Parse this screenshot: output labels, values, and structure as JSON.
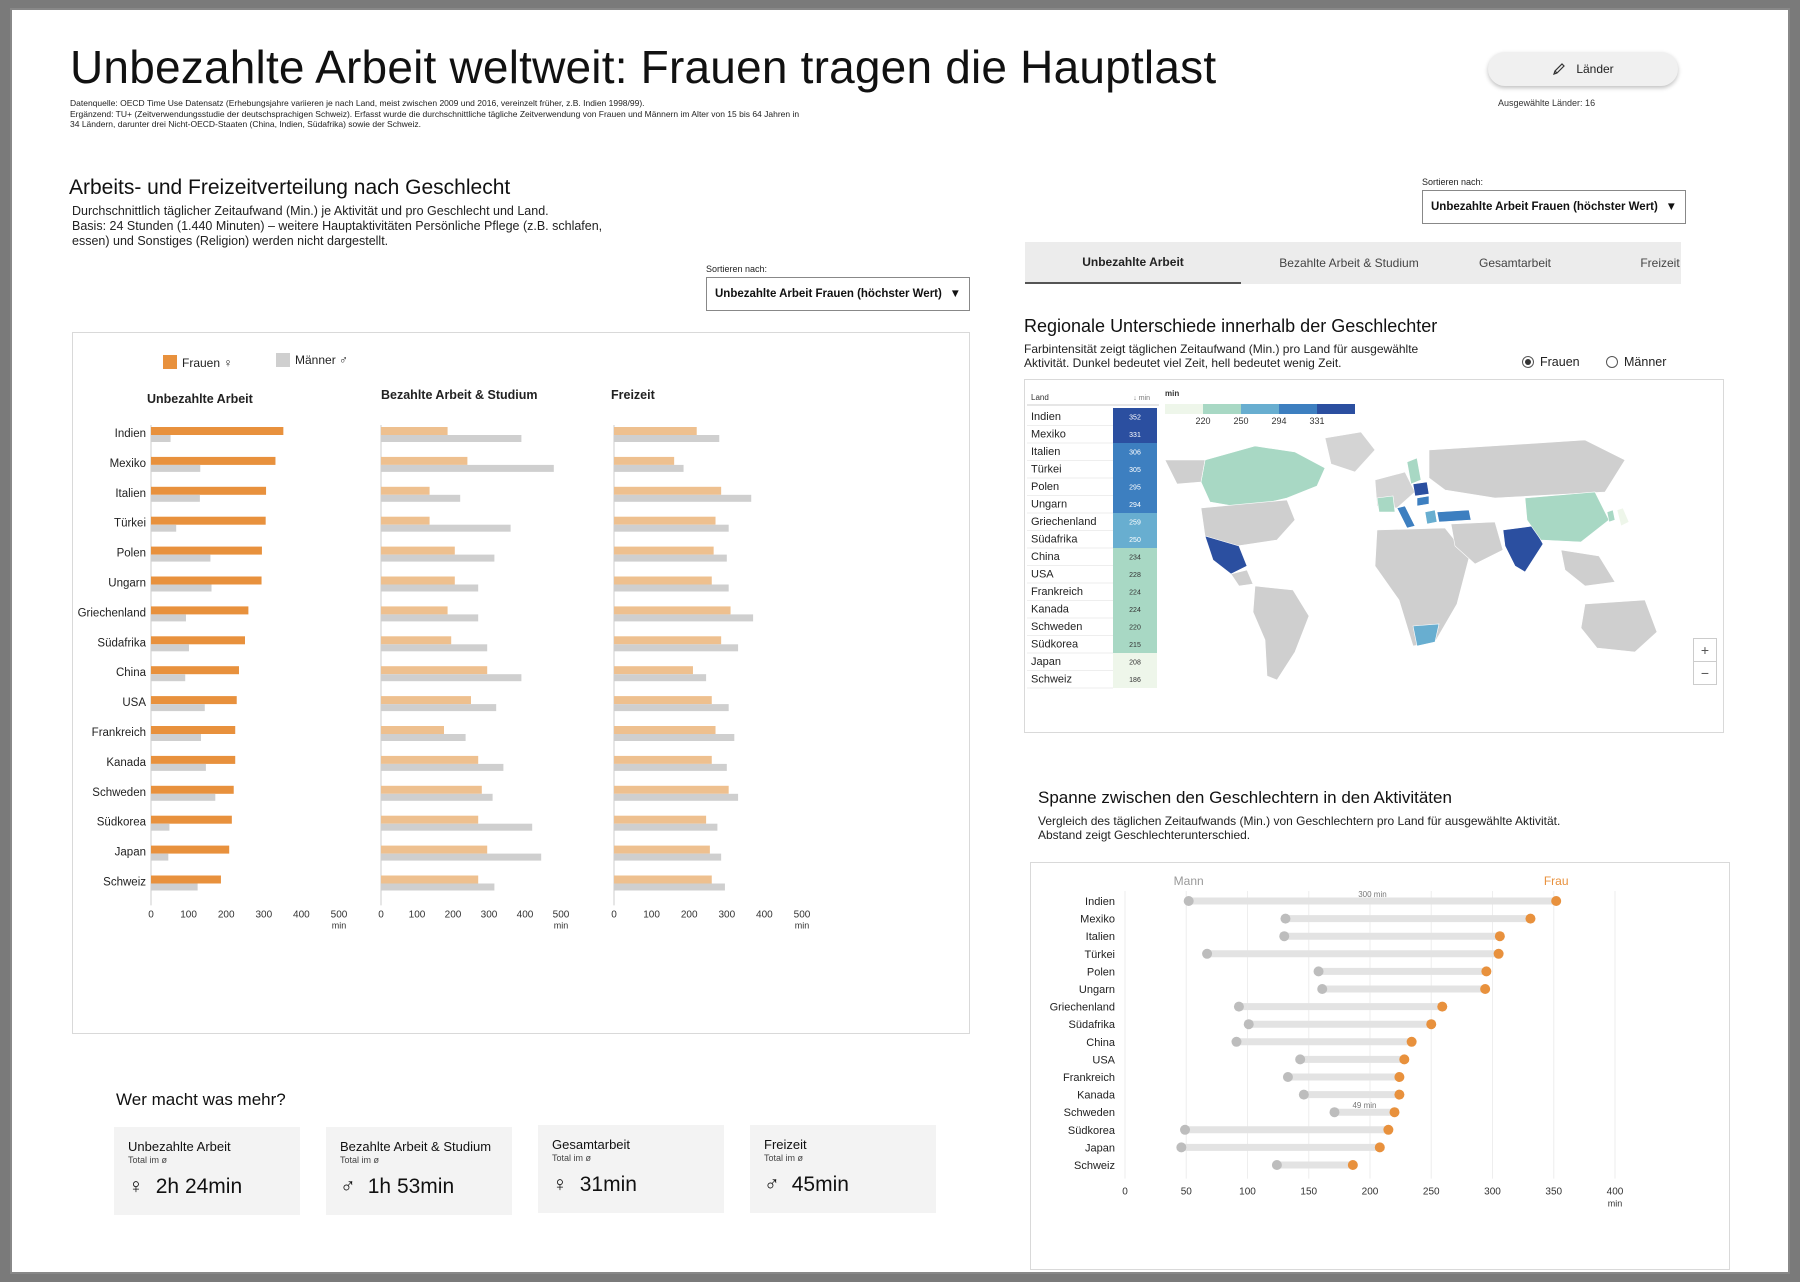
{
  "header": {
    "title": "Unbezahlte Arbeit weltweit: Frauen tragen die Hauptlast",
    "source_line1": "Datenquelle: OECD Time Use Datensatz (Erhebungsjahre variieren je nach Land, meist zwischen 2009 und 2016, vereinzelt früher, z.B. Indien 1998/99).",
    "source_line2": "Ergänzend: TU+ (Zeitverwendungsstudie der deutschsprachigen Schweiz). Erfasst wurde die durchschnittliche tägliche Zeitverwendung von Frauen und Männern im Alter von 15 bis 64 Jahren in 34 Ländern, darunter drei Nicht-OECD-Staaten (China, Indien, Südafrika) sowie der Schweiz.",
    "laender_button": "Länder",
    "laender_count": "Ausgewählte Länder: 16"
  },
  "left": {
    "title": "Arbeits- und Freizeitverteilung nach Geschlecht",
    "desc1": "Durchschnittlich täglicher Zeitaufwand (Min.) je Aktivität und pro Geschlecht und Land.",
    "desc2": "Basis: 24 Stunden (1.440 Minuten) – weitere Hauptaktivitäten Persönliche Pflege (z.B. schlafen, essen) und Sonstiges (Religion) werden nicht dargestellt.",
    "sort_label": "Sortieren nach:",
    "sort_value": "Unbezahlte Arbeit Frauen (höchster Wert)"
  },
  "right": {
    "sort_label": "Sortieren nach:",
    "sort_value": "Unbezahlte Arbeit Frauen (höchster Wert)",
    "tabs": [
      "Unbezahlte Arbeit",
      "Bezahlte Arbeit & Studium",
      "Gesamtarbeit",
      "Freizeit"
    ],
    "map_title": "Regionale Unterschiede innerhalb der Geschlechter",
    "map_desc1": "Farbintensität zeigt täglichen Zeitaufwand (Min.) pro Land für ausgewählte",
    "map_desc2": "Aktivität. Dunkel bedeutet viel Zeit, hell bedeutet wenig Zeit.",
    "radio_frauen": "Frauen",
    "radio_maenner": "Männer",
    "table_head_land": "Land",
    "table_head_min": "↓ min",
    "legend_label": "min",
    "legend_ticks": [
      "220",
      "250",
      "294",
      "331"
    ],
    "zoom_in": "+",
    "zoom_out": "−",
    "span_title": "Spanne zwischen den Geschlechtern in den Aktivitäten",
    "span_desc1": "Vergleich des täglichen Zeitaufwands (Min.) von Geschlechtern pro Land für ausgewählte Aktivität.",
    "span_desc2": "Abstand zeigt Geschlechterunterschied."
  },
  "summary": {
    "title": "Wer macht was mehr?",
    "cards": [
      {
        "title": "Unbezahlte Arbeit",
        "sub": "Total im ø",
        "symbol": "♀",
        "value": "2h 24min"
      },
      {
        "title": "Bezahlte Arbeit & Studium",
        "sub": "Total im ø",
        "symbol": "♂",
        "value": "1h 53min"
      },
      {
        "title": "Gesamtarbeit",
        "sub": "Total im ø",
        "symbol": "♀",
        "value": "31min"
      },
      {
        "title": "Freizeit",
        "sub": "Total im ø",
        "symbol": "♂",
        "value": "45min"
      }
    ]
  },
  "colors": {
    "frauen": "#e8913d",
    "frauen_light": "#eec08f",
    "maenner": "#cfcfcf",
    "dumbbell_mann": "#bdbdbd",
    "heat": [
      "#eef6ea",
      "#a8d8c4",
      "#68aed0",
      "#3d7fc0",
      "#2b4fa0"
    ]
  },
  "chart_data": [
    {
      "type": "bar",
      "title": "Unbezahlte Arbeit",
      "legend": [
        "Frauen ♀",
        "Männer ♂"
      ],
      "unit": "min",
      "categories": [
        "Indien",
        "Mexiko",
        "Italien",
        "Türkei",
        "Polen",
        "Ungarn",
        "Griechenland",
        "Südafrika",
        "China",
        "USA",
        "Frankreich",
        "Kanada",
        "Schweden",
        "Südkorea",
        "Japan",
        "Schweiz"
      ],
      "xticks": [
        "0",
        "100",
        "200",
        "300",
        "400",
        "500"
      ],
      "xlim": [
        0,
        500
      ],
      "series": [
        {
          "name": "Frauen",
          "values": [
            352,
            331,
            306,
            305,
            295,
            294,
            259,
            250,
            234,
            228,
            224,
            224,
            220,
            215,
            208,
            186
          ]
        },
        {
          "name": "Männer",
          "values": [
            52,
            131,
            130,
            67,
            158,
            161,
            93,
            101,
            91,
            143,
            133,
            146,
            171,
            49,
            46,
            124
          ]
        }
      ]
    },
    {
      "type": "bar",
      "title": "Bezahlte Arbeit & Studium",
      "unit": "min",
      "categories": [
        "Indien",
        "Mexiko",
        "Italien",
        "Türkei",
        "Polen",
        "Ungarn",
        "Griechenland",
        "Südafrika",
        "China",
        "USA",
        "Frankreich",
        "Kanada",
        "Schweden",
        "Südkorea",
        "Japan",
        "Schweiz"
      ],
      "xticks": [
        "0",
        "100",
        "200",
        "300",
        "400",
        "500"
      ],
      "xlim": [
        0,
        500
      ],
      "series": [
        {
          "name": "Frauen",
          "values": [
            185,
            240,
            135,
            135,
            205,
            205,
            185,
            195,
            295,
            250,
            175,
            270,
            280,
            270,
            295,
            270
          ]
        },
        {
          "name": "Männer",
          "values": [
            390,
            480,
            220,
            360,
            315,
            270,
            270,
            295,
            390,
            320,
            235,
            340,
            310,
            420,
            445,
            315
          ]
        }
      ]
    },
    {
      "type": "bar",
      "title": "Freizeit",
      "unit": "min",
      "categories": [
        "Indien",
        "Mexiko",
        "Italien",
        "Türkei",
        "Polen",
        "Ungarn",
        "Griechenland",
        "Südafrika",
        "China",
        "USA",
        "Frankreich",
        "Kanada",
        "Schweden",
        "Südkorea",
        "Japan",
        "Schweiz"
      ],
      "xticks": [
        "0",
        "100",
        "200",
        "300",
        "400",
        "500"
      ],
      "xlim": [
        0,
        500
      ],
      "series": [
        {
          "name": "Frauen",
          "values": [
            220,
            160,
            285,
            270,
            265,
            260,
            310,
            285,
            210,
            260,
            270,
            260,
            305,
            245,
            255,
            260
          ]
        },
        {
          "name": "Männer",
          "values": [
            280,
            185,
            365,
            305,
            300,
            305,
            370,
            330,
            245,
            305,
            320,
            300,
            330,
            275,
            285,
            295
          ]
        }
      ]
    },
    {
      "type": "heatmap",
      "title": "Regionale Unterschiede innerhalb der Geschlechter",
      "categories": [
        "Indien",
        "Mexiko",
        "Italien",
        "Türkei",
        "Polen",
        "Ungarn",
        "Griechenland",
        "Südafrika",
        "China",
        "USA",
        "Frankreich",
        "Kanada",
        "Schweden",
        "Südkorea",
        "Japan",
        "Schweiz"
      ],
      "values": [
        352,
        331,
        306,
        305,
        295,
        294,
        259,
        250,
        234,
        228,
        224,
        224,
        220,
        215,
        208,
        186
      ]
    },
    {
      "type": "scatter",
      "title": "Spanne zwischen den Geschlechtern in den Aktivitäten",
      "legend": [
        "Mann",
        "Frau"
      ],
      "unit": "min",
      "categories": [
        "Indien",
        "Mexiko",
        "Italien",
        "Türkei",
        "Polen",
        "Ungarn",
        "Griechenland",
        "Südafrika",
        "China",
        "USA",
        "Frankreich",
        "Kanada",
        "Schweden",
        "Südkorea",
        "Japan",
        "Schweiz"
      ],
      "xticks": [
        "0",
        "50",
        "100",
        "150",
        "200",
        "250",
        "300",
        "350",
        "400"
      ],
      "xlim": [
        0,
        400
      ],
      "series": [
        {
          "name": "Mann",
          "values": [
            52,
            131,
            130,
            67,
            158,
            161,
            93,
            101,
            91,
            143,
            133,
            146,
            171,
            49,
            46,
            124
          ]
        },
        {
          "name": "Frau",
          "values": [
            352,
            331,
            306,
            305,
            295,
            294,
            259,
            250,
            234,
            228,
            224,
            224,
            220,
            215,
            208,
            186
          ]
        }
      ],
      "annotations": [
        "300 min",
        "49 min"
      ]
    }
  ]
}
